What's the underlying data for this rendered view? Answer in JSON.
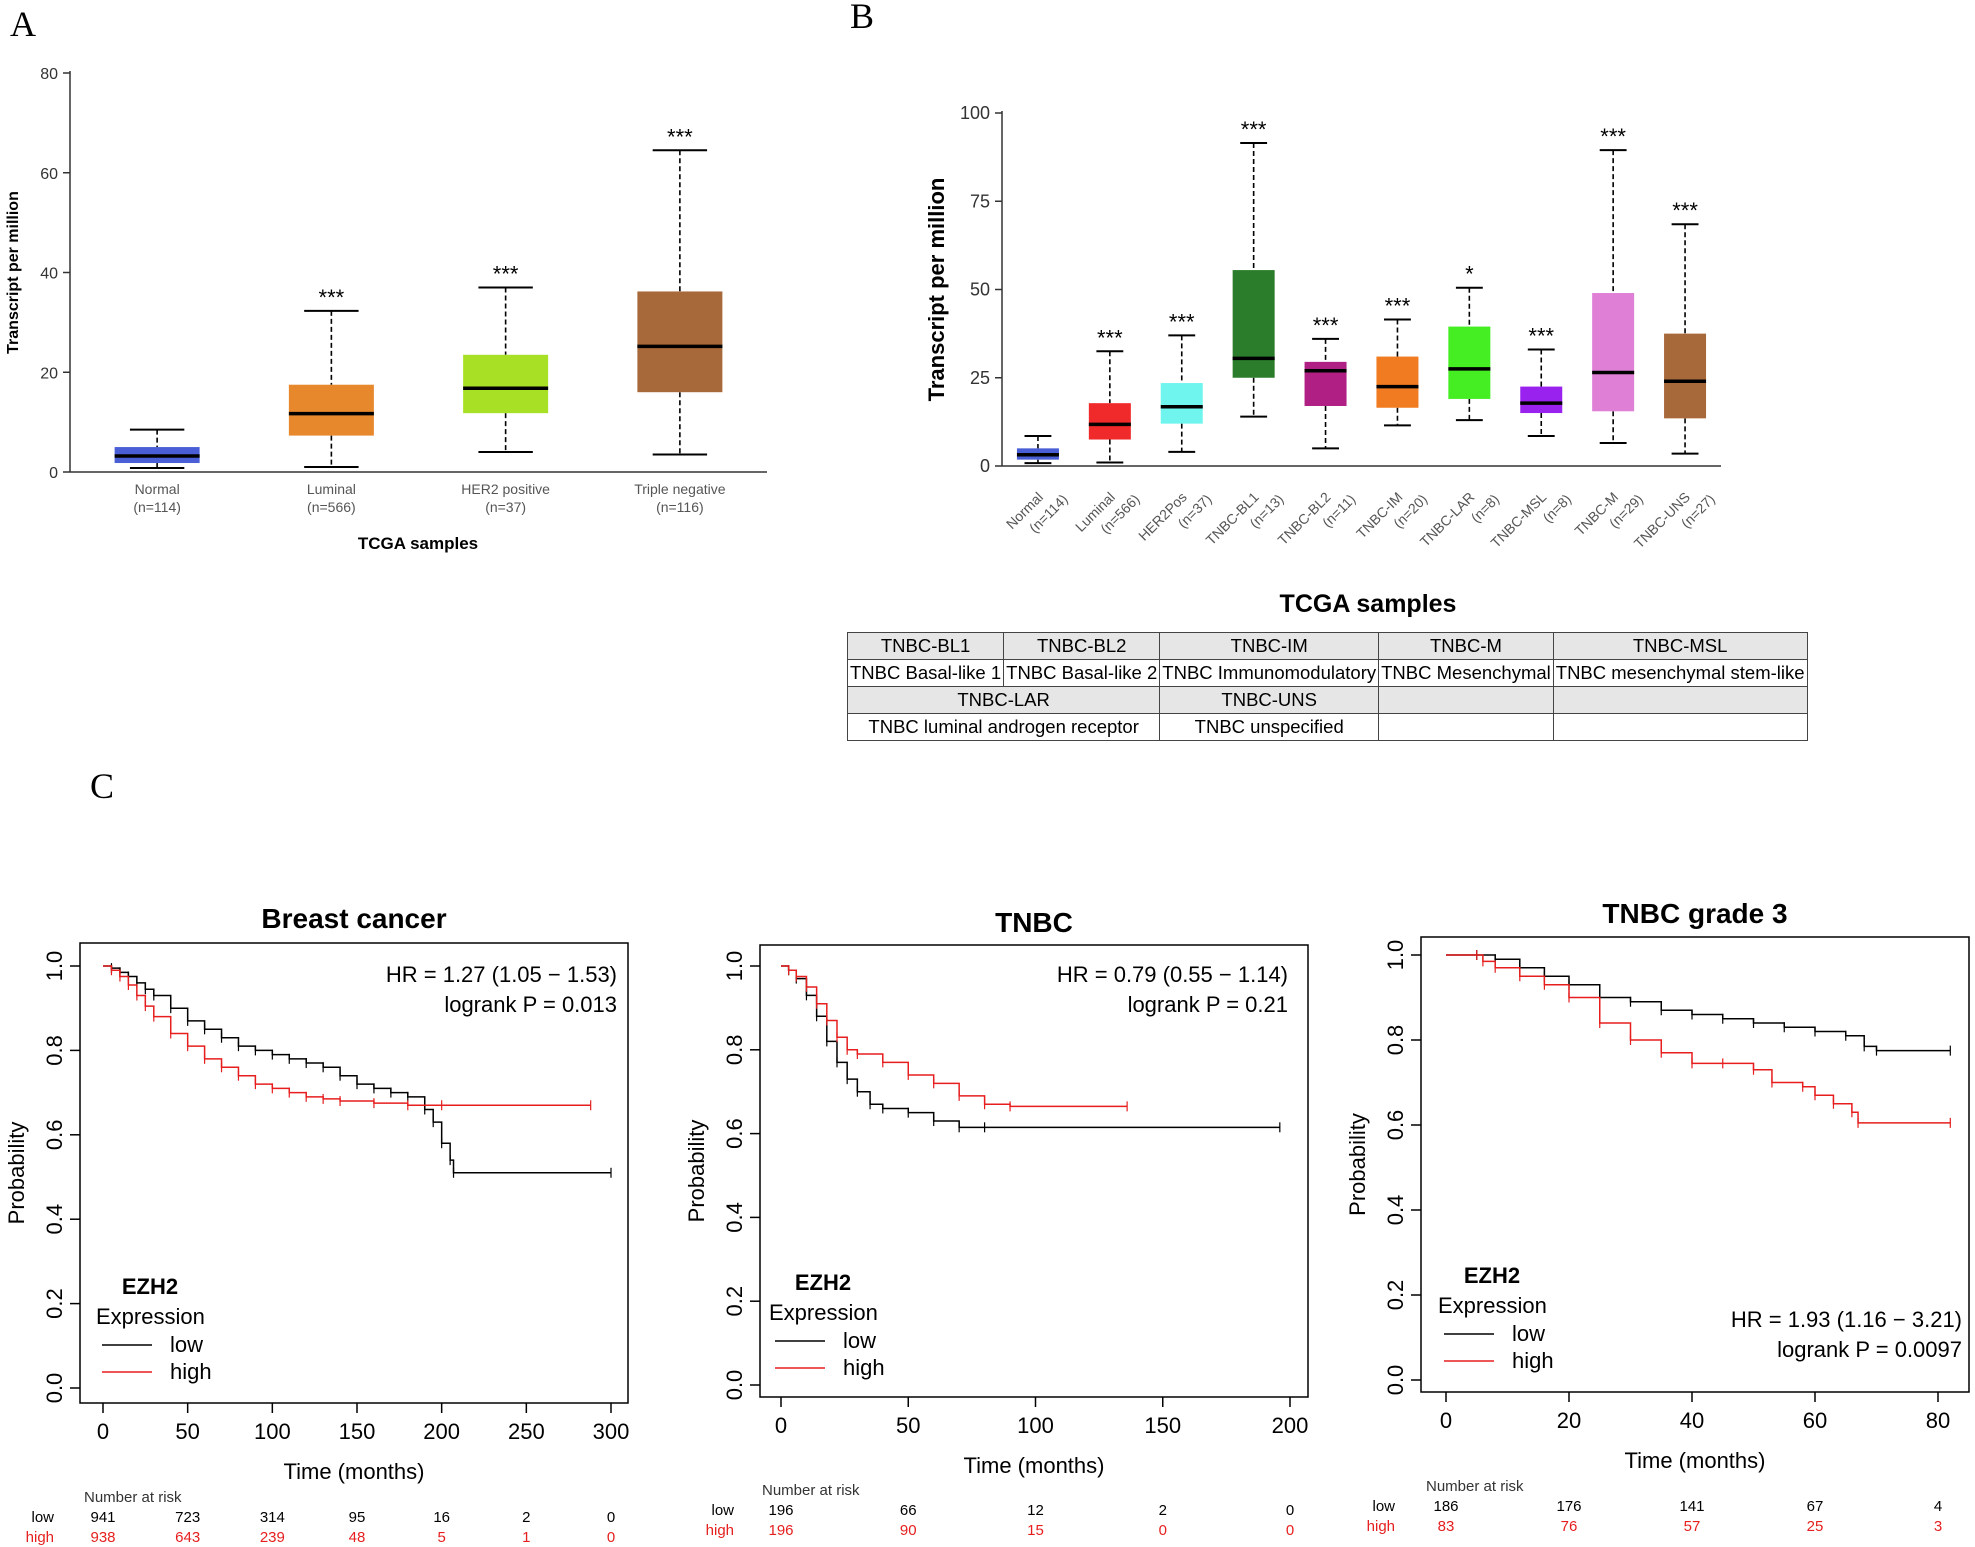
{
  "panels": {
    "a": "A",
    "b": "B",
    "c": "C"
  },
  "chart_data": [
    {
      "type": "box",
      "panel": "A",
      "ylabel": "Transcript per million",
      "xlabel": "TCGA samples",
      "ylim": [
        0,
        80
      ],
      "yticks": [
        0,
        20,
        40,
        60,
        80
      ],
      "categories": [
        {
          "name": "Normal",
          "n": "(n=114)",
          "color": "#4a5fd6",
          "min": 0.8,
          "q1": 1.8,
          "median": 3.2,
          "q3": 5.0,
          "max": 8.5,
          "sig": ""
        },
        {
          "name": "Luminal",
          "n": "(n=566)",
          "color": "#e8882c",
          "min": 1.0,
          "q1": 7.3,
          "median": 11.7,
          "q3": 17.5,
          "max": 32.3,
          "sig": "***"
        },
        {
          "name": "HER2 positive",
          "n": "(n=37)",
          "color": "#a8e025",
          "min": 4.0,
          "q1": 11.8,
          "median": 16.8,
          "q3": 23.5,
          "max": 37.0,
          "sig": "***"
        },
        {
          "name": "Triple negative",
          "n": "(n=116)",
          "color": "#a8693a",
          "min": 3.5,
          "q1": 16.0,
          "median": 25.2,
          "q3": 36.2,
          "max": 64.5,
          "sig": "***"
        }
      ]
    },
    {
      "type": "box",
      "panel": "B",
      "ylabel": "Transcript per million",
      "xlabel": "TCGA samples",
      "ylim": [
        0,
        100
      ],
      "yticks": [
        0,
        25,
        50,
        75,
        100
      ],
      "categories": [
        {
          "name": "Normal",
          "n": "(n=114)",
          "color": "#4a5fd6",
          "min": 0.8,
          "q1": 1.8,
          "median": 3.2,
          "q3": 5.0,
          "max": 8.5,
          "sig": ""
        },
        {
          "name": "Luminal",
          "n": "(n=566)",
          "color": "#f02a2a",
          "min": 1.0,
          "q1": 7.5,
          "median": 11.8,
          "q3": 17.8,
          "max": 32.5,
          "sig": "***"
        },
        {
          "name": "HER2Pos",
          "n": "(n=37)",
          "color": "#6ff5ee",
          "min": 4.0,
          "q1": 12.0,
          "median": 16.8,
          "q3": 23.5,
          "max": 37.0,
          "sig": "***"
        },
        {
          "name": "TNBC-BL1",
          "n": "(n=13)",
          "color": "#2b7d2b",
          "min": 14.0,
          "q1": 25.0,
          "median": 30.5,
          "q3": 55.5,
          "max": 91.5,
          "sig": "***"
        },
        {
          "name": "TNBC-BL2",
          "n": "(n=11)",
          "color": "#b02084",
          "min": 5.0,
          "q1": 17.0,
          "median": 27.0,
          "q3": 29.5,
          "max": 36.0,
          "sig": "***"
        },
        {
          "name": "TNBC-IM",
          "n": "(n=20)",
          "color": "#f07b20",
          "min": 11.5,
          "q1": 16.5,
          "median": 22.5,
          "q3": 31.0,
          "max": 41.5,
          "sig": "***"
        },
        {
          "name": "TNBC-LAR",
          "n": "(n=8)",
          "color": "#44ee22",
          "min": 13.0,
          "q1": 19.0,
          "median": 27.5,
          "q3": 39.5,
          "max": 50.5,
          "sig": "*"
        },
        {
          "name": "TNBC-MSL",
          "n": "(n=8)",
          "color": "#9a22ee",
          "min": 8.5,
          "q1": 15.0,
          "median": 17.8,
          "q3": 22.5,
          "max": 33.0,
          "sig": "***"
        },
        {
          "name": "TNBC-M",
          "n": "(n=29)",
          "color": "#e07fd6",
          "min": 6.5,
          "q1": 15.5,
          "median": 26.5,
          "q3": 49.0,
          "max": 89.5,
          "sig": "***"
        },
        {
          "name": "TNBC-UNS",
          "n": "(n=27)",
          "color": "#a8693a",
          "min": 3.5,
          "q1": 13.5,
          "median": 24.0,
          "q3": 37.5,
          "max": 68.5,
          "sig": "***"
        }
      ]
    },
    {
      "type": "line",
      "panel": "C1",
      "title": "Breast cancer",
      "ylabel": "Probability",
      "xlabel": "Time (months)",
      "xlim": [
        0,
        300
      ],
      "xticks": [
        0,
        50,
        100,
        150,
        200,
        250,
        300
      ],
      "ylim": [
        0,
        1
      ],
      "yticks": [
        "0.0",
        "0.2",
        "0.4",
        "0.6",
        "0.8",
        "1.0"
      ],
      "hr": "HR = 1.27 (1.05 − 1.53)",
      "logrank": "logrank P = 0.013",
      "legend_title": "EZH2",
      "legend_subtitle": "Expression",
      "series": [
        {
          "name": "low",
          "color": "#000000",
          "points": [
            [
              0,
              1
            ],
            [
              5,
              0.995
            ],
            [
              10,
              0.985
            ],
            [
              15,
              0.975
            ],
            [
              20,
              0.96
            ],
            [
              25,
              0.945
            ],
            [
              30,
              0.93
            ],
            [
              40,
              0.9
            ],
            [
              50,
              0.87
            ],
            [
              60,
              0.85
            ],
            [
              70,
              0.83
            ],
            [
              80,
              0.81
            ],
            [
              90,
              0.8
            ],
            [
              100,
              0.79
            ],
            [
              110,
              0.78
            ],
            [
              120,
              0.77
            ],
            [
              130,
              0.76
            ],
            [
              140,
              0.74
            ],
            [
              150,
              0.72
            ],
            [
              160,
              0.71
            ],
            [
              170,
              0.7
            ],
            [
              180,
              0.69
            ],
            [
              190,
              0.66
            ],
            [
              195,
              0.63
            ],
            [
              200,
              0.58
            ],
            [
              205,
              0.54
            ],
            [
              207,
              0.51
            ],
            [
              300,
              0.51
            ]
          ]
        },
        {
          "name": "high",
          "color": "#e61e1e",
          "points": [
            [
              0,
              1
            ],
            [
              5,
              0.99
            ],
            [
              10,
              0.975
            ],
            [
              15,
              0.955
            ],
            [
              20,
              0.93
            ],
            [
              25,
              0.905
            ],
            [
              30,
              0.88
            ],
            [
              40,
              0.84
            ],
            [
              50,
              0.81
            ],
            [
              60,
              0.78
            ],
            [
              70,
              0.76
            ],
            [
              80,
              0.74
            ],
            [
              90,
              0.72
            ],
            [
              100,
              0.71
            ],
            [
              110,
              0.7
            ],
            [
              120,
              0.69
            ],
            [
              130,
              0.685
            ],
            [
              140,
              0.68
            ],
            [
              160,
              0.675
            ],
            [
              180,
              0.67
            ],
            [
              200,
              0.67
            ],
            [
              288,
              0.67
            ]
          ]
        }
      ],
      "risk_label": "Number at risk",
      "risk": {
        "low": [
          "941",
          "723",
          "314",
          "95",
          "16",
          "2",
          "0"
        ],
        "high": [
          "938",
          "643",
          "239",
          "48",
          "5",
          "1",
          "0"
        ]
      }
    },
    {
      "type": "line",
      "panel": "C2",
      "title": "TNBC",
      "ylabel": "Probability",
      "xlabel": "Time (months)",
      "xlim": [
        0,
        200
      ],
      "xticks": [
        0,
        50,
        100,
        150,
        200
      ],
      "ylim": [
        0,
        1
      ],
      "yticks": [
        "0.0",
        "0.2",
        "0.4",
        "0.6",
        "0.8",
        "1.0"
      ],
      "hr": "HR = 0.79 (0.55 − 1.14)",
      "logrank": "logrank P = 0.21",
      "legend_title": "EZH2",
      "legend_subtitle": "Expression",
      "series": [
        {
          "name": "low",
          "color": "#000000",
          "points": [
            [
              0,
              1
            ],
            [
              3,
              0.99
            ],
            [
              6,
              0.97
            ],
            [
              10,
              0.93
            ],
            [
              14,
              0.88
            ],
            [
              18,
              0.82
            ],
            [
              22,
              0.77
            ],
            [
              26,
              0.73
            ],
            [
              30,
              0.7
            ],
            [
              35,
              0.67
            ],
            [
              40,
              0.66
            ],
            [
              50,
              0.65
            ],
            [
              60,
              0.63
            ],
            [
              70,
              0.615
            ],
            [
              80,
              0.615
            ],
            [
              196,
              0.615
            ]
          ]
        },
        {
          "name": "high",
          "color": "#e61e1e",
          "points": [
            [
              0,
              1
            ],
            [
              3,
              0.99
            ],
            [
              6,
              0.975
            ],
            [
              10,
              0.95
            ],
            [
              14,
              0.91
            ],
            [
              18,
              0.87
            ],
            [
              22,
              0.83
            ],
            [
              26,
              0.8
            ],
            [
              30,
              0.79
            ],
            [
              40,
              0.77
            ],
            [
              50,
              0.74
            ],
            [
              60,
              0.72
            ],
            [
              70,
              0.69
            ],
            [
              80,
              0.67
            ],
            [
              90,
              0.665
            ],
            [
              136,
              0.665
            ]
          ]
        }
      ],
      "risk_label": "Number at risk",
      "risk": {
        "low": [
          "196",
          "66",
          "12",
          "2",
          "0"
        ],
        "high": [
          "196",
          "90",
          "15",
          "0",
          "0"
        ]
      }
    },
    {
      "type": "line",
      "panel": "C3",
      "title": "TNBC grade 3",
      "ylabel": "Probability",
      "xlabel": "Time (months)",
      "xlim": [
        0,
        80
      ],
      "xticks": [
        0,
        20,
        40,
        60,
        80
      ],
      "ylim": [
        0,
        1
      ],
      "yticks": [
        "0.0",
        "0.2",
        "0.4",
        "0.6",
        "0.8",
        "1.0"
      ],
      "hr": "HR = 1.93 (1.16 − 3.21)",
      "logrank": "logrank P = 0.0097",
      "legend_title": "EZH2",
      "legend_subtitle": "Expression",
      "series": [
        {
          "name": "low",
          "color": "#000000",
          "points": [
            [
              0,
              1
            ],
            [
              5,
              1
            ],
            [
              8,
              0.99
            ],
            [
              12,
              0.97
            ],
            [
              16,
              0.95
            ],
            [
              20,
              0.93
            ],
            [
              25,
              0.9
            ],
            [
              30,
              0.89
            ],
            [
              35,
              0.87
            ],
            [
              40,
              0.86
            ],
            [
              45,
              0.85
            ],
            [
              50,
              0.84
            ],
            [
              55,
              0.83
            ],
            [
              60,
              0.82
            ],
            [
              65,
              0.81
            ],
            [
              68,
              0.785
            ],
            [
              70,
              0.775
            ],
            [
              82,
              0.775
            ]
          ]
        },
        {
          "name": "high",
          "color": "#e61e1e",
          "points": [
            [
              0,
              1
            ],
            [
              5,
              1
            ],
            [
              6,
              0.985
            ],
            [
              8,
              0.97
            ],
            [
              12,
              0.95
            ],
            [
              16,
              0.93
            ],
            [
              20,
              0.9
            ],
            [
              25,
              0.84
            ],
            [
              30,
              0.8
            ],
            [
              35,
              0.77
            ],
            [
              40,
              0.745
            ],
            [
              45,
              0.745
            ],
            [
              50,
              0.73
            ],
            [
              53,
              0.7
            ],
            [
              58,
              0.69
            ],
            [
              60,
              0.67
            ],
            [
              63,
              0.65
            ],
            [
              66,
              0.63
            ],
            [
              67,
              0.605
            ],
            [
              82,
              0.605
            ]
          ]
        }
      ],
      "risk_label": "Number at risk",
      "risk": {
        "low": [
          "186",
          "176",
          "141",
          "67",
          "4"
        ],
        "high": [
          "83",
          "76",
          "57",
          "25",
          "3"
        ]
      }
    }
  ],
  "legend_table": {
    "row1": [
      "TNBC-BL1",
      "TNBC-BL2",
      "TNBC-IM",
      "TNBC-M",
      "TNBC-MSL"
    ],
    "row2": [
      "TNBC Basal-like 1",
      "TNBC Basal-like 2",
      "TNBC Immunomodulatory",
      "TNBC Mesenchymal",
      "TNBC mesenchymal stem-like"
    ],
    "row3": [
      "TNBC-LAR",
      "TNBC-UNS"
    ],
    "row4": [
      "TNBC luminal androgen receptor",
      "TNBC unspecified"
    ]
  }
}
